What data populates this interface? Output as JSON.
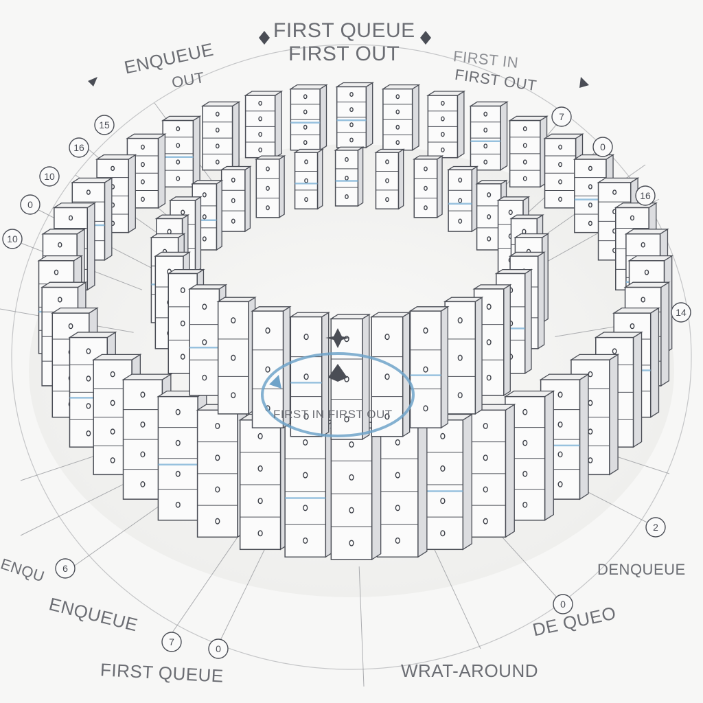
{
  "labels": {
    "top_line1": "FIRST QUEUE",
    "top_line2": "FIRST OUT",
    "top_left": "ENQUEUE",
    "top_left_sub": "OUT",
    "top_right_line1": "FIRST IN",
    "top_right_line2": "FIRST OUT",
    "center": "FIRST IN FIRST OUT",
    "left_lower": "ENQU",
    "enqueue_bottom": "ENQUEUE",
    "first_queue_bottom": "FIRST QUEUE",
    "wrap_around": "WRAT-AROUND",
    "denqueue": "DENQUEUE",
    "de_queue": "DE QUEO"
  },
  "badges": [
    "16",
    "15",
    "10",
    "0",
    "10",
    "7",
    "0",
    "16",
    "14",
    "2",
    "6",
    "7",
    "0",
    "0"
  ],
  "colors": {
    "stroke": "#4a4d55",
    "block_fill": "#fbfbfb",
    "block_shadow": "#dcdde0",
    "accent": "#7fb3d8",
    "background": "#f7f7f6"
  }
}
